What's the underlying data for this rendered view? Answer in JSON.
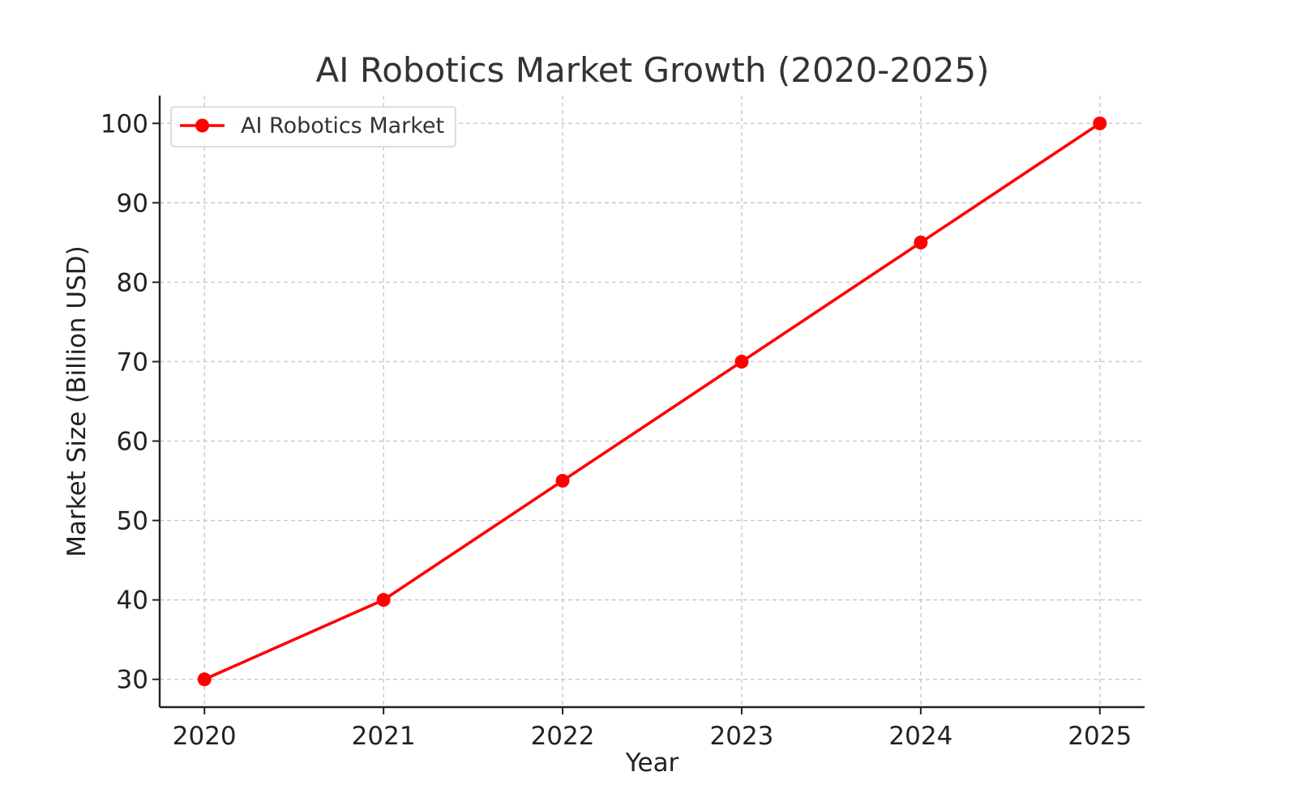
{
  "chart_data": {
    "type": "line",
    "title": "AI Robotics Market Growth (2020-2025)",
    "xlabel": "Year",
    "ylabel": "Market Size (Billion USD)",
    "x": [
      2020,
      2021,
      2022,
      2023,
      2024,
      2025
    ],
    "x_ticks": [
      "2020",
      "2021",
      "2022",
      "2023",
      "2024",
      "2025"
    ],
    "y_ticks": [
      "30",
      "40",
      "50",
      "60",
      "70",
      "80",
      "90",
      "100"
    ],
    "xlim": [
      2019.75,
      2025.25
    ],
    "ylim": [
      26.5,
      103.5
    ],
    "grid": true,
    "legend_position": "top-left",
    "series": [
      {
        "name": "AI Robotics Market",
        "values": [
          30,
          40,
          55,
          70,
          85,
          100
        ],
        "color": "#ff0000",
        "marker": "circle"
      }
    ]
  }
}
